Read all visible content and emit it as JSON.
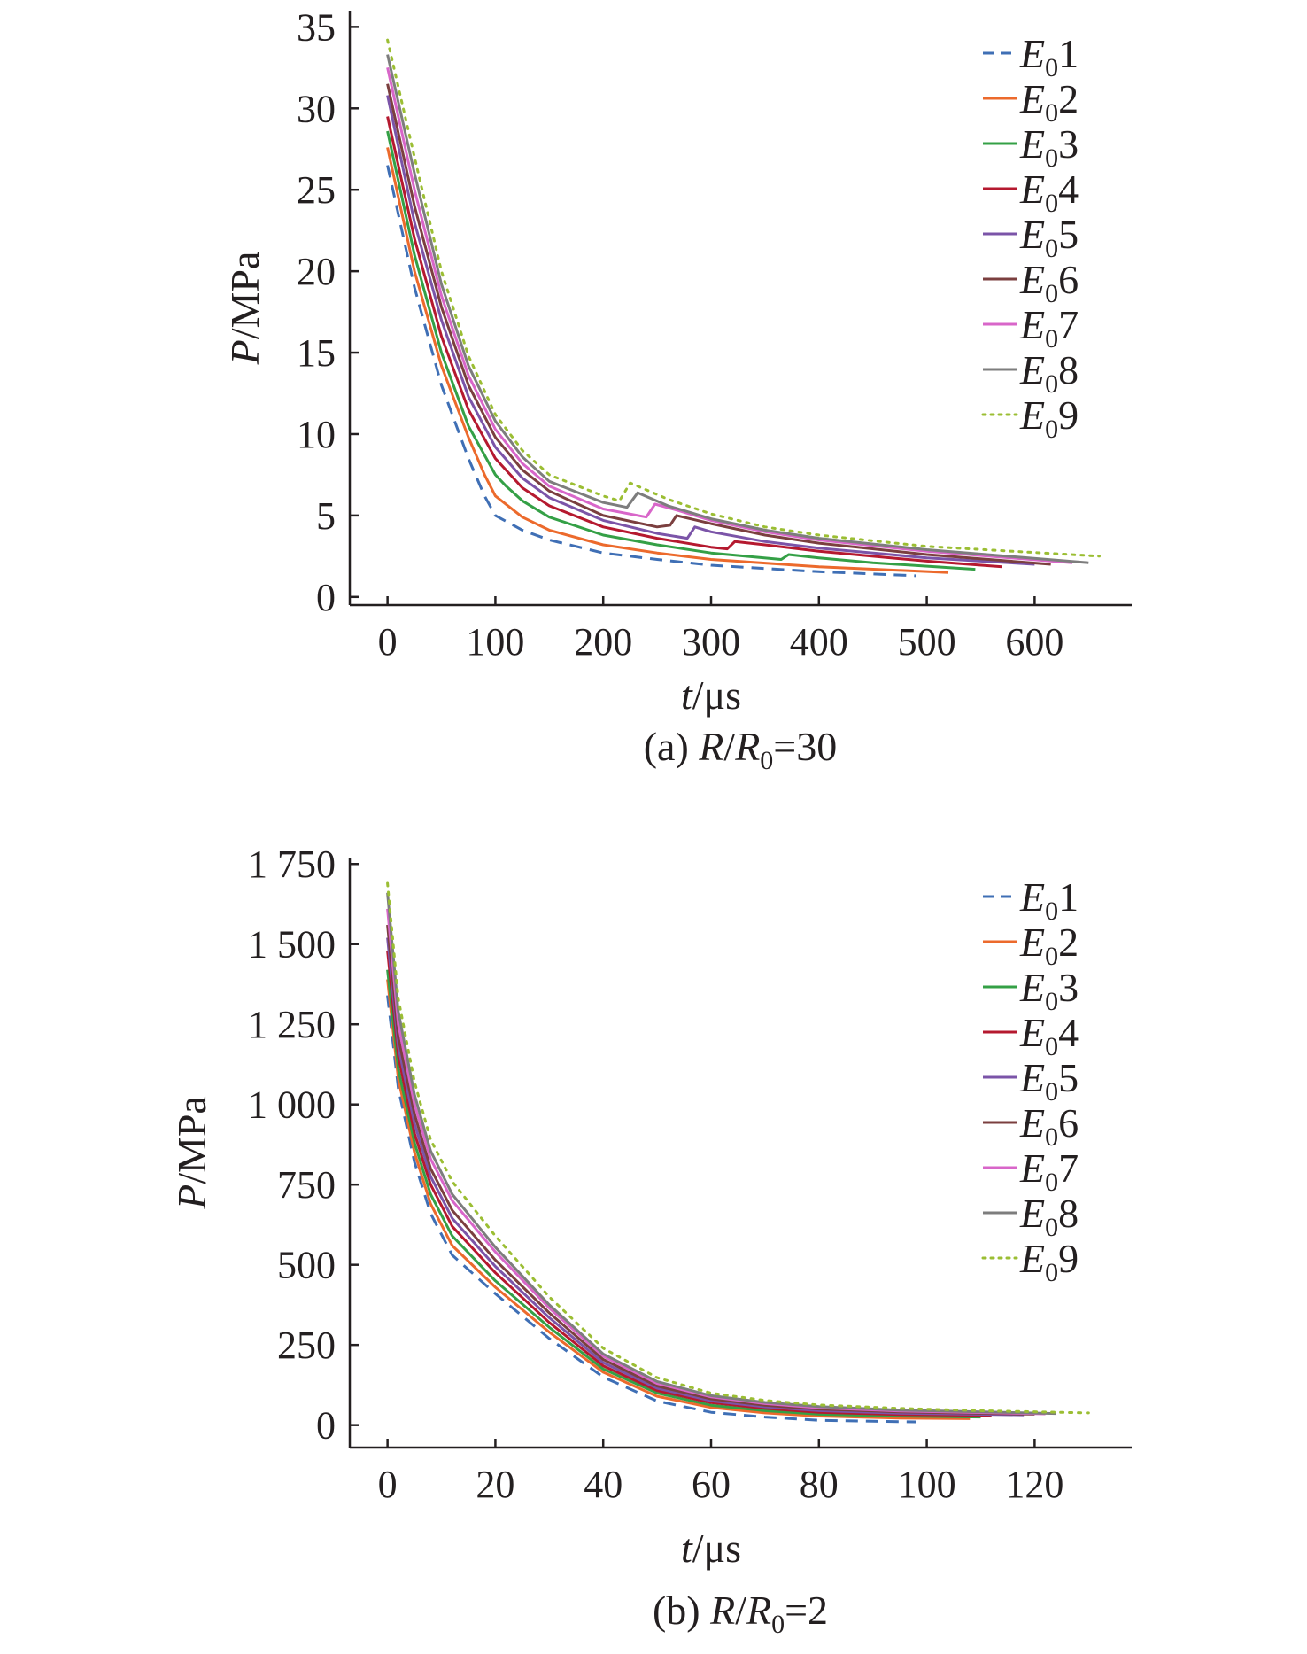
{
  "colors": {
    "E01": "#3f6fb5",
    "E02": "#ec6a2c",
    "E03": "#34a046",
    "E04": "#b5192f",
    "E05": "#7b54a8",
    "E06": "#7b3f3f",
    "E07": "#d866c9",
    "E08": "#7d7d7d",
    "E09": "#9bbe33"
  },
  "chart_data": [
    {
      "type": "line",
      "caption_prefix": "(a) ",
      "caption_r": "R",
      "caption_r0": "R",
      "caption_sub": "0",
      "caption_value": "=30",
      "xlabel_var": "t",
      "xlabel_unit": "/μs",
      "ylabel_var": "P",
      "ylabel_unit": "/MPa",
      "xlim": [
        -35,
        690
      ],
      "ylim": [
        -0.5,
        36
      ],
      "xticks": [
        0,
        100,
        200,
        300,
        400,
        500,
        600
      ],
      "yticks": [
        0,
        5,
        10,
        15,
        20,
        25,
        30,
        35
      ],
      "xtick_labels": [
        "0",
        "100",
        "200",
        "300",
        "400",
        "500",
        "600"
      ],
      "ytick_labels": [
        "0",
        "5",
        "10",
        "15",
        "20",
        "25",
        "30",
        "35"
      ],
      "legend": "top-right",
      "series": [
        {
          "name": "E01",
          "sub_base": "E",
          "sub": "0",
          "num": "1",
          "dash": "dashed",
          "x": [
            0,
            25,
            50,
            75,
            90,
            100,
            125,
            150,
            200,
            250,
            300,
            400,
            490
          ],
          "y": [
            26.5,
            19,
            13,
            8.5,
            6.2,
            5.0,
            4.1,
            3.5,
            2.7,
            2.3,
            1.95,
            1.55,
            1.3
          ]
        },
        {
          "name": "E02",
          "sub_base": "E",
          "sub": "0",
          "num": "2",
          "dash": "solid",
          "x": [
            0,
            25,
            50,
            75,
            90,
            100,
            125,
            150,
            200,
            250,
            300,
            400,
            520
          ],
          "y": [
            27.6,
            20,
            14.2,
            9.8,
            7.5,
            6.2,
            4.9,
            4.1,
            3.2,
            2.7,
            2.3,
            1.85,
            1.5
          ]
        },
        {
          "name": "E03",
          "sub_base": "E",
          "sub": "0",
          "num": "3",
          "dash": "solid",
          "x": [
            0,
            25,
            50,
            75,
            100,
            110,
            125,
            150,
            200,
            250,
            300,
            365,
            372,
            400,
            450,
            545
          ],
          "y": [
            28.6,
            21,
            15,
            10.5,
            7.5,
            6.8,
            5.9,
            4.9,
            3.8,
            3.2,
            2.7,
            2.3,
            2.6,
            2.4,
            2.1,
            1.7
          ]
        },
        {
          "name": "E04",
          "sub_base": "E",
          "sub": "0",
          "num": "4",
          "dash": "solid",
          "x": [
            0,
            25,
            50,
            75,
            100,
            125,
            150,
            200,
            250,
            300,
            315,
            322,
            350,
            400,
            500,
            570
          ],
          "y": [
            29.5,
            22,
            16,
            11.5,
            8.5,
            6.7,
            5.6,
            4.3,
            3.6,
            3.05,
            2.95,
            3.4,
            3.2,
            2.8,
            2.2,
            1.85
          ]
        },
        {
          "name": "E05",
          "sub_base": "E",
          "sub": "0",
          "num": "5",
          "dash": "solid",
          "x": [
            0,
            25,
            50,
            75,
            100,
            125,
            150,
            200,
            250,
            278,
            285,
            300,
            350,
            400,
            500,
            600
          ],
          "y": [
            30.8,
            23,
            17,
            12.3,
            9.2,
            7.3,
            6.1,
            4.7,
            3.9,
            3.6,
            4.3,
            4.0,
            3.4,
            3.0,
            2.4,
            2.0
          ]
        },
        {
          "name": "E06",
          "sub_base": "E",
          "sub": "0",
          "num": "6",
          "dash": "solid",
          "x": [
            0,
            25,
            50,
            75,
            100,
            125,
            150,
            200,
            250,
            262,
            268,
            300,
            350,
            400,
            500,
            615
          ],
          "y": [
            31.5,
            24,
            17.8,
            13,
            9.8,
            7.8,
            6.5,
            5.0,
            4.3,
            4.4,
            5.0,
            4.5,
            3.8,
            3.3,
            2.6,
            2.0
          ]
        },
        {
          "name": "E07",
          "sub_base": "E",
          "sub": "0",
          "num": "7",
          "dash": "solid",
          "x": [
            0,
            25,
            50,
            75,
            100,
            125,
            150,
            200,
            240,
            248,
            270,
            300,
            350,
            400,
            500,
            635
          ],
          "y": [
            32.5,
            25,
            18.5,
            13.6,
            10.3,
            8.2,
            6.8,
            5.4,
            4.9,
            5.7,
            5.3,
            4.7,
            4.0,
            3.5,
            2.8,
            2.1
          ]
        },
        {
          "name": "E08",
          "sub_base": "E",
          "sub": "0",
          "num": "8",
          "dash": "solid",
          "x": [
            0,
            25,
            50,
            75,
            100,
            125,
            150,
            200,
            222,
            232,
            260,
            300,
            350,
            400,
            500,
            650
          ],
          "y": [
            33.3,
            26,
            19.2,
            14.2,
            10.8,
            8.6,
            7.1,
            5.8,
            5.5,
            6.4,
            5.6,
            4.8,
            4.1,
            3.6,
            2.9,
            2.1
          ]
        },
        {
          "name": "E09",
          "sub_base": "E",
          "sub": "0",
          "num": "9",
          "dash": "dotted",
          "x": [
            0,
            25,
            50,
            75,
            100,
            125,
            150,
            200,
            215,
            225,
            260,
            300,
            350,
            400,
            500,
            660
          ],
          "y": [
            34.2,
            27,
            20,
            14.8,
            11.2,
            9.0,
            7.5,
            6.2,
            5.9,
            7.0,
            6.0,
            5.1,
            4.3,
            3.8,
            3.1,
            2.5
          ]
        }
      ]
    },
    {
      "type": "line",
      "caption_prefix": "(b) ",
      "caption_r": "R",
      "caption_r0": "R",
      "caption_sub": "0",
      "caption_value": "=2",
      "xlabel_var": "t",
      "xlabel_unit": "/μs",
      "ylabel_var": "P",
      "ylabel_unit": "/MPa",
      "xlim": [
        -7,
        138
      ],
      "ylim": [
        -70,
        1770
      ],
      "xticks": [
        0,
        20,
        40,
        60,
        80,
        100,
        120
      ],
      "yticks": [
        0,
        250,
        500,
        750,
        1000,
        1250,
        1500,
        1750
      ],
      "xtick_labels": [
        "0",
        "20",
        "40",
        "60",
        "80",
        "100",
        "120"
      ],
      "ytick_labels": [
        "0",
        "250",
        "500",
        "750",
        "1 000",
        "1 250",
        "1 500",
        "1 750"
      ],
      "legend": "top-right",
      "series": [
        {
          "name": "E01",
          "sub_base": "E",
          "sub": "0",
          "num": "1",
          "dash": "dashed",
          "x": [
            0,
            2,
            5,
            8,
            12,
            20,
            30,
            40,
            50,
            60,
            70,
            80,
            90,
            98
          ],
          "y": [
            1340,
            1050,
            820,
            660,
            530,
            410,
            270,
            150,
            75,
            40,
            25,
            15,
            12,
            10
          ]
        },
        {
          "name": "E02",
          "sub_base": "E",
          "sub": "0",
          "num": "2",
          "dash": "solid",
          "x": [
            0,
            2,
            5,
            8,
            12,
            20,
            30,
            40,
            50,
            60,
            70,
            80,
            95,
            108
          ],
          "y": [
            1390,
            1080,
            850,
            690,
            560,
            430,
            290,
            165,
            90,
            55,
            38,
            28,
            22,
            20
          ]
        },
        {
          "name": "E03",
          "sub_base": "E",
          "sub": "0",
          "num": "3",
          "dash": "solid",
          "x": [
            0,
            2,
            5,
            8,
            12,
            20,
            30,
            40,
            50,
            60,
            70,
            80,
            95,
            110
          ],
          "y": [
            1420,
            1110,
            880,
            720,
            590,
            450,
            305,
            175,
            100,
            62,
            45,
            34,
            28,
            25
          ]
        },
        {
          "name": "E04",
          "sub_base": "E",
          "sub": "0",
          "num": "4",
          "dash": "solid",
          "x": [
            0,
            2,
            5,
            8,
            12,
            20,
            30,
            40,
            50,
            60,
            70,
            80,
            95,
            112
          ],
          "y": [
            1480,
            1150,
            910,
            750,
            620,
            475,
            320,
            185,
            108,
            70,
            52,
            40,
            33,
            30
          ]
        },
        {
          "name": "E05",
          "sub_base": "E",
          "sub": "0",
          "num": "5",
          "dash": "solid",
          "x": [
            0,
            2,
            5,
            8,
            12,
            20,
            30,
            40,
            50,
            60,
            70,
            80,
            95,
            118
          ],
          "y": [
            1520,
            1180,
            940,
            775,
            645,
            495,
            335,
            195,
            115,
            76,
            57,
            45,
            37,
            32
          ]
        },
        {
          "name": "E06",
          "sub_base": "E",
          "sub": "0",
          "num": "6",
          "dash": "solid",
          "x": [
            0,
            2,
            5,
            8,
            12,
            20,
            30,
            40,
            50,
            60,
            70,
            80,
            95,
            120
          ],
          "y": [
            1560,
            1210,
            970,
            800,
            670,
            515,
            350,
            205,
            122,
            82,
            62,
            50,
            41,
            34
          ]
        },
        {
          "name": "E07",
          "sub_base": "E",
          "sub": "0",
          "num": "7",
          "dash": "solid",
          "x": [
            0,
            2,
            5,
            8,
            12,
            20,
            30,
            40,
            50,
            60,
            70,
            80,
            95,
            122
          ],
          "y": [
            1610,
            1250,
            1000,
            830,
            700,
            540,
            365,
            215,
            130,
            88,
            67,
            54,
            44,
            35
          ]
        },
        {
          "name": "E08",
          "sub_base": "E",
          "sub": "0",
          "num": "8",
          "dash": "solid",
          "x": [
            0,
            2,
            5,
            8,
            12,
            20,
            30,
            40,
            50,
            60,
            70,
            80,
            95,
            124
          ],
          "y": [
            1660,
            1290,
            1030,
            855,
            720,
            555,
            375,
            222,
            136,
            92,
            71,
            58,
            47,
            36
          ]
        },
        {
          "name": "E09",
          "sub_base": "E",
          "sub": "0",
          "num": "9",
          "dash": "dotted",
          "x": [
            0,
            2,
            5,
            8,
            12,
            20,
            30,
            40,
            50,
            60,
            70,
            80,
            95,
            110,
            130
          ],
          "y": [
            1690,
            1330,
            1070,
            890,
            760,
            590,
            400,
            240,
            148,
            100,
            77,
            63,
            52,
            45,
            38
          ]
        }
      ]
    }
  ]
}
